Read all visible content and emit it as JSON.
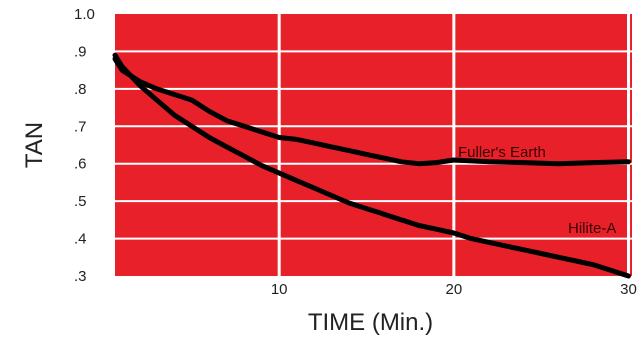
{
  "chart_data": {
    "type": "line",
    "title": "",
    "xlabel": "TIME (Min.)",
    "ylabel": "TAN",
    "xlim": [
      0.6,
      30.2
    ],
    "ylim": [
      0.3,
      1.0
    ],
    "x_ticks": [
      {
        "value": 10,
        "label": "10"
      },
      {
        "value": 20,
        "label": "20"
      },
      {
        "value": 30,
        "label": "30"
      }
    ],
    "y_ticks": [
      {
        "value": 1.0,
        "label": "1.0"
      },
      {
        "value": 0.9,
        "label": ".9"
      },
      {
        "value": 0.8,
        "label": ".8"
      },
      {
        "value": 0.7,
        "label": ".7"
      },
      {
        "value": 0.6,
        "label": ".6"
      },
      {
        "value": 0.5,
        "label": ".5"
      },
      {
        "value": 0.4,
        "label": ".4"
      },
      {
        "value": 0.3,
        "label": ".3"
      }
    ],
    "grid": true,
    "colors": {
      "plot_background": "#e8202a",
      "grid": "#ffffff",
      "line": "#000000"
    },
    "series": [
      {
        "name": "Fuller's Earth",
        "x": [
          0.6,
          1,
          2,
          3,
          4,
          5,
          6,
          7,
          8,
          9,
          10,
          11,
          12,
          13,
          14,
          15,
          16,
          17,
          18,
          19,
          20,
          22,
          24,
          26,
          28,
          30
        ],
        "y": [
          0.88,
          0.85,
          0.82,
          0.8,
          0.785,
          0.77,
          0.74,
          0.715,
          0.7,
          0.685,
          0.67,
          0.665,
          0.655,
          0.645,
          0.635,
          0.625,
          0.615,
          0.605,
          0.6,
          0.603,
          0.61,
          0.605,
          0.603,
          0.6,
          0.603,
          0.605
        ]
      },
      {
        "name": "Hilite-A",
        "x": [
          0.6,
          1,
          2,
          3,
          4,
          5,
          6,
          7,
          8,
          9,
          10,
          11,
          12,
          13,
          14,
          15,
          16,
          17,
          18,
          19,
          20,
          21,
          22,
          23,
          24,
          25,
          26,
          27,
          28,
          29,
          30
        ],
        "y": [
          0.89,
          0.86,
          0.81,
          0.77,
          0.73,
          0.7,
          0.67,
          0.645,
          0.62,
          0.595,
          0.575,
          0.555,
          0.535,
          0.515,
          0.495,
          0.48,
          0.465,
          0.45,
          0.435,
          0.425,
          0.415,
          0.4,
          0.39,
          0.38,
          0.37,
          0.36,
          0.35,
          0.34,
          0.33,
          0.315,
          0.3
        ]
      }
    ]
  }
}
